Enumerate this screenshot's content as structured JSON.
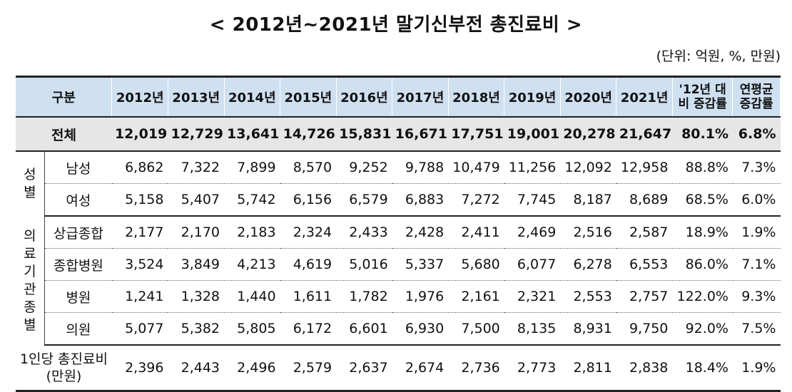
{
  "title": "< 2012년~2021년 말기신부전 총진료비 >",
  "unit": "(단위: 억원, %, 만원)",
  "header": {
    "category": "구분",
    "years": [
      "2012년",
      "2013년",
      "2014년",
      "2015년",
      "2016년",
      "2017년",
      "2018년",
      "2019년",
      "2020년",
      "2021년"
    ],
    "change": "'12년 대비 증감률",
    "annual": "연평균 증감률"
  },
  "total": {
    "label": "전체",
    "values": [
      "12,019",
      "12,729",
      "13,641",
      "14,726",
      "15,831",
      "16,671",
      "17,751",
      "19,001",
      "20,278",
      "21,647"
    ],
    "change": "80.1%",
    "annual": "6.8%"
  },
  "gender": {
    "group": "성별",
    "rows": [
      {
        "label": "남성",
        "values": [
          "6,862",
          "7,322",
          "7,899",
          "8,570",
          "9,252",
          "9,788",
          "10,479",
          "11,256",
          "12,092",
          "12,958"
        ],
        "change": "88.8%",
        "annual": "7.3%"
      },
      {
        "label": "여성",
        "values": [
          "5,158",
          "5,407",
          "5,742",
          "6,156",
          "6,579",
          "6,883",
          "7,272",
          "7,745",
          "8,187",
          "8,689"
        ],
        "change": "68.5%",
        "annual": "6.0%"
      }
    ]
  },
  "institution": {
    "group": "의료기관종별",
    "rows": [
      {
        "label": "상급종합",
        "values": [
          "2,177",
          "2,170",
          "2,183",
          "2,324",
          "2,433",
          "2,428",
          "2,411",
          "2,469",
          "2,516",
          "2,587"
        ],
        "change": "18.9%",
        "annual": "1.9%"
      },
      {
        "label": "종합병원",
        "values": [
          "3,524",
          "3,849",
          "4,213",
          "4,619",
          "5,016",
          "5,337",
          "5,680",
          "6,077",
          "6,278",
          "6,553"
        ],
        "change": "86.0%",
        "annual": "7.1%"
      },
      {
        "label": "병원",
        "values": [
          "1,241",
          "1,328",
          "1,440",
          "1,611",
          "1,782",
          "1,976",
          "2,161",
          "2,321",
          "2,553",
          "2,757"
        ],
        "change": "122.0%",
        "annual": "9.3%"
      },
      {
        "label": "의원",
        "values": [
          "5,077",
          "5,382",
          "5,805",
          "6,172",
          "6,601",
          "6,930",
          "7,500",
          "8,135",
          "8,931",
          "9,750"
        ],
        "change": "92.0%",
        "annual": "7.5%"
      }
    ]
  },
  "per_person": {
    "label_line1": "1인당 총진료비",
    "label_line2": "(만원)",
    "values": [
      "2,396",
      "2,443",
      "2,496",
      "2,579",
      "2,637",
      "2,674",
      "2,736",
      "2,773",
      "2,811",
      "2,838"
    ],
    "change": "18.4%",
    "annual": "1.9%"
  }
}
